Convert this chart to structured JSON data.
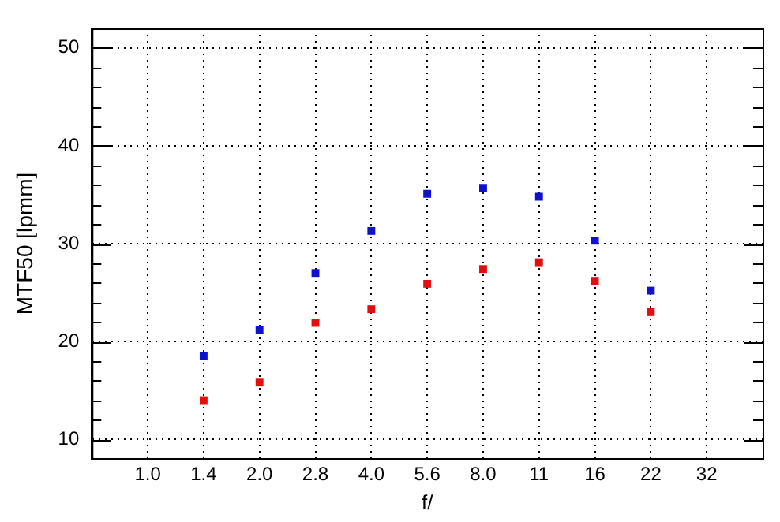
{
  "chart_data": {
    "type": "scatter",
    "xlabel": "f/",
    "ylabel": "MTF50 [lpmm]",
    "categories": [
      "1.0",
      "1.4",
      "2.0",
      "2.8",
      "4.0",
      "5.6",
      "8.0",
      "11",
      "16",
      "22",
      "32"
    ],
    "series": [
      {
        "color": "#e01010",
        "values": [
          null,
          14.0,
          15.8,
          21.9,
          23.3,
          25.9,
          27.4,
          28.1,
          26.2,
          23.0,
          null
        ]
      },
      {
        "color": "#1010d0",
        "values": [
          null,
          18.5,
          21.2,
          27.0,
          31.3,
          35.1,
          35.7,
          34.8,
          30.3,
          25.2,
          null
        ]
      }
    ],
    "ylim": [
      8,
      52
    ],
    "yticks": [
      10,
      {
        "value": 12,
        "label": null
      },
      {
        "value": 14,
        "label": null
      },
      {
        "value": 16,
        "label": null
      },
      {
        "value": 18,
        "label": null
      },
      20,
      {
        "value": 22,
        "label": null
      },
      {
        "value": 24,
        "label": null
      },
      {
        "value": 26,
        "label": null
      },
      {
        "value": 28,
        "label": null
      },
      30,
      {
        "value": 32,
        "label": null
      },
      {
        "value": 34,
        "label": null
      },
      {
        "value": 36,
        "label": null
      },
      {
        "value": 38,
        "label": null
      },
      40,
      {
        "value": 42,
        "label": null
      },
      {
        "value": 44,
        "label": null
      },
      {
        "value": 46,
        "label": null
      },
      {
        "value": 48,
        "label": null
      },
      50
    ],
    "grid": true,
    "marker": "square"
  }
}
